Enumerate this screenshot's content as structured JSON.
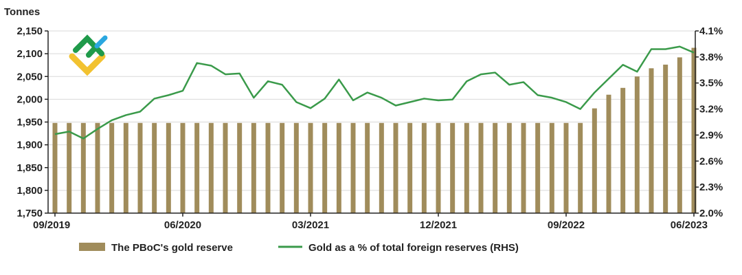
{
  "chart_data": {
    "type": "bar+line",
    "yunit_label": "Tonnes",
    "ylim": [
      1750,
      2150
    ],
    "yticks": [
      "2,150",
      "2,100",
      "2,050",
      "2,000",
      "1,950",
      "1,900",
      "1,850",
      "1,800",
      "1,750"
    ],
    "ylim_right": [
      2.0,
      4.1
    ],
    "yticks_right": [
      "4.1%",
      "3.8%",
      "3.5%",
      "3.2%",
      "2.9%",
      "2.6%",
      "2.3%",
      "2.0%"
    ],
    "xtick_labels": [
      "09/2019",
      "06/2020",
      "03/2021",
      "12/2021",
      "09/2022",
      "06/2023"
    ],
    "xtick_indices": [
      0,
      9,
      18,
      27,
      36,
      45
    ],
    "grid": true,
    "legend_position": "bottom",
    "series": [
      {
        "name": "The PBoC's gold reserve",
        "type": "bar",
        "axis": "left",
        "color": "#a08c5b",
        "values": [
          1948,
          1948,
          1948,
          1948,
          1948,
          1948,
          1948,
          1948,
          1948,
          1948,
          1948,
          1948,
          1948,
          1948,
          1948,
          1948,
          1948,
          1948,
          1948,
          1948,
          1948,
          1948,
          1948,
          1948,
          1948,
          1948,
          1948,
          1948,
          1948,
          1948,
          1948,
          1948,
          1948,
          1948,
          1948,
          1948,
          1948,
          1948,
          1980,
          2010,
          2025,
          2050,
          2068,
          2076,
          2092,
          2113
        ]
      },
      {
        "name": "Gold as a % of total foreign reserves (RHS)",
        "type": "line",
        "axis": "right",
        "color": "#3a9a4a",
        "values": [
          2.91,
          2.94,
          2.86,
          2.97,
          3.07,
          3.13,
          3.17,
          3.32,
          3.36,
          3.41,
          3.73,
          3.7,
          3.6,
          3.61,
          3.33,
          3.52,
          3.48,
          3.28,
          3.21,
          3.32,
          3.54,
          3.3,
          3.39,
          3.33,
          3.24,
          3.28,
          3.32,
          3.3,
          3.31,
          3.52,
          3.6,
          3.62,
          3.48,
          3.51,
          3.36,
          3.33,
          3.28,
          3.2,
          3.39,
          3.55,
          3.71,
          3.63,
          3.89,
          3.89,
          3.92,
          3.85
        ]
      }
    ]
  }
}
